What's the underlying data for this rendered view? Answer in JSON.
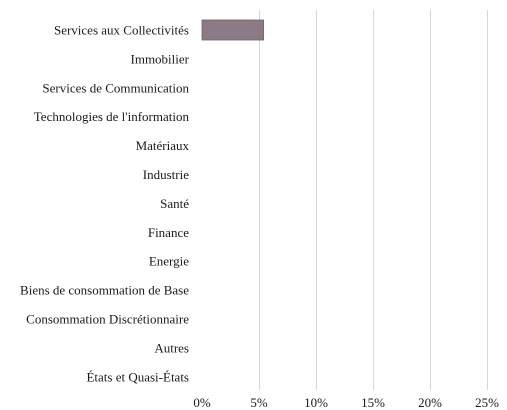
{
  "chart_data": {
    "type": "bar",
    "orientation": "horizontal",
    "categories": [
      "Services aux Collectivités",
      "Immobilier",
      "Services de Communication",
      "Technologies de l'information",
      "Matériaux",
      "Industrie",
      "Santé",
      "Finance",
      "Energie",
      "Biens de consommation de Base",
      "Consommation Discrétionnaire",
      "Autres",
      "États et Quasi-États"
    ],
    "values": [
      5.4,
      0,
      0,
      0,
      0,
      0,
      0,
      0,
      0,
      0,
      0,
      0,
      0
    ],
    "title": "",
    "xlabel": "",
    "ylabel": "",
    "xlim": [
      0,
      25
    ],
    "x_ticks": [
      0,
      5,
      10,
      15,
      20,
      25
    ],
    "x_tick_labels": [
      "0%",
      "5%",
      "10%",
      "15%",
      "20%",
      "25%"
    ],
    "grid": true,
    "legend": "none",
    "colors": {
      "bar": "#8c7b86",
      "bar_edge": "#6f6069",
      "grid": "#d6d6d6"
    }
  }
}
